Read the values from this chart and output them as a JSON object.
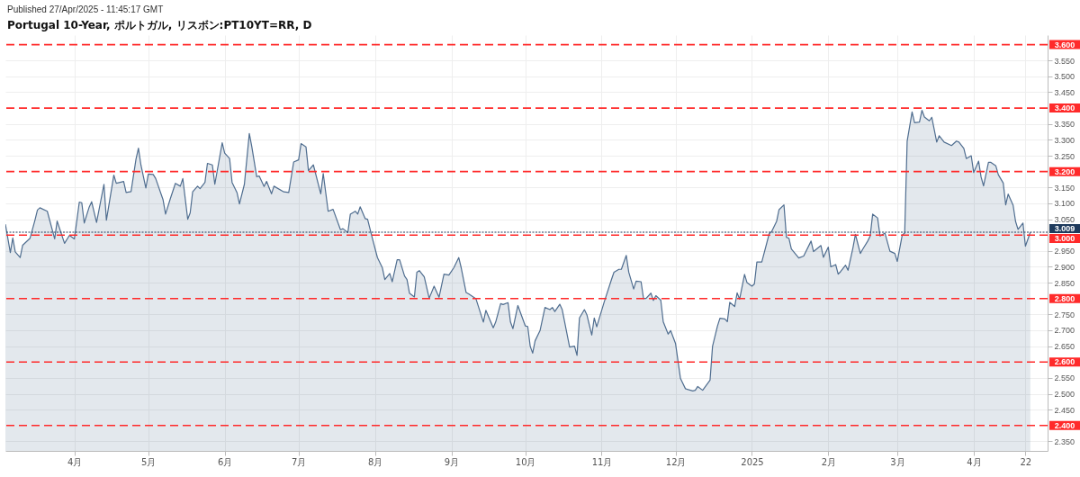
{
  "chart_data": {
    "type": "area",
    "title": "Portugal 10-Year, ポルトガル, リスボン:PT10YT=RR, D",
    "subtitle": "Published 27/Apr/2025 - 11:45:17 GMT",
    "color": "#4f6d8f",
    "grid": true,
    "x": [
      "2024-03-04",
      "2024-03-06",
      "2024-03-07",
      "2024-03-08",
      "2024-03-10",
      "2024-03-11",
      "2024-03-14",
      "2024-03-16",
      "2024-03-17",
      "2024-03-18",
      "2024-03-21",
      "2024-03-24",
      "2024-03-25",
      "2024-03-28",
      "2024-03-30",
      "2024-04-01",
      "2024-04-03",
      "2024-04-04",
      "2024-04-05",
      "2024-04-07",
      "2024-04-08",
      "2024-04-10",
      "2024-04-13",
      "2024-04-14",
      "2024-04-17",
      "2024-04-18",
      "2024-04-21",
      "2024-04-22",
      "2024-04-24",
      "2024-04-26",
      "2024-04-27",
      "2024-04-28",
      "2024-04-30",
      "2024-05-01",
      "2024-05-03",
      "2024-05-04",
      "2024-05-07",
      "2024-05-08",
      "2024-05-10",
      "2024-05-12",
      "2024-05-14",
      "2024-05-15",
      "2024-05-17",
      "2024-05-18",
      "2024-05-19",
      "2024-05-21",
      "2024-05-22",
      "2024-05-24",
      "2024-05-25",
      "2024-05-27",
      "2024-05-28",
      "2024-05-31",
      "2024-06-01",
      "2024-06-03",
      "2024-06-04",
      "2024-06-06",
      "2024-06-07",
      "2024-06-09",
      "2024-06-11",
      "2024-06-12",
      "2024-06-14",
      "2024-06-15",
      "2024-06-17",
      "2024-06-18",
      "2024-06-20",
      "2024-06-21",
      "2024-06-25",
      "2024-06-27",
      "2024-06-29",
      "2024-07-01",
      "2024-07-02",
      "2024-07-04",
      "2024-07-05",
      "2024-07-07",
      "2024-07-10",
      "2024-07-11",
      "2024-07-13",
      "2024-07-15",
      "2024-07-18",
      "2024-07-19",
      "2024-07-21",
      "2024-07-22",
      "2024-07-24",
      "2024-07-25",
      "2024-07-26",
      "2024-07-28",
      "2024-07-29",
      "2024-07-31",
      "2024-08-02",
      "2024-08-04",
      "2024-08-05",
      "2024-08-07",
      "2024-08-08",
      "2024-08-10",
      "2024-08-11",
      "2024-08-13",
      "2024-08-14",
      "2024-08-15",
      "2024-08-17",
      "2024-08-18",
      "2024-08-19",
      "2024-08-21",
      "2024-08-23",
      "2024-08-25",
      "2024-08-27",
      "2024-08-29",
      "2024-08-31",
      "2024-09-02",
      "2024-09-04",
      "2024-09-05",
      "2024-09-07",
      "2024-09-08",
      "2024-09-11",
      "2024-09-14",
      "2024-09-15",
      "2024-09-18",
      "2024-09-19",
      "2024-09-21",
      "2024-09-22",
      "2024-09-24",
      "2024-09-25",
      "2024-09-26",
      "2024-09-28",
      "2024-10-01",
      "2024-10-02",
      "2024-10-03",
      "2024-10-04",
      "2024-10-05",
      "2024-10-07",
      "2024-10-09",
      "2024-10-11",
      "2024-10-12",
      "2024-10-13",
      "2024-10-15",
      "2024-10-16",
      "2024-10-19",
      "2024-10-21",
      "2024-10-22",
      "2024-10-23",
      "2024-10-25",
      "2024-10-26",
      "2024-10-28",
      "2024-10-29",
      "2024-10-30",
      "2024-11-02",
      "2024-11-05",
      "2024-11-06",
      "2024-11-08",
      "2024-11-09",
      "2024-11-11",
      "2024-11-12",
      "2024-11-14",
      "2024-11-15",
      "2024-11-17",
      "2024-11-18",
      "2024-11-19",
      "2024-11-21",
      "2024-11-22",
      "2024-11-23",
      "2024-11-25",
      "2024-11-26",
      "2024-11-28",
      "2024-11-29",
      "2024-12-01",
      "2024-12-03",
      "2024-12-05",
      "2024-12-08",
      "2024-12-09",
      "2024-12-10",
      "2024-12-12",
      "2024-12-15",
      "2024-12-16",
      "2024-12-18",
      "2024-12-19",
      "2024-12-21",
      "2024-12-22",
      "2024-12-23",
      "2024-12-25",
      "2024-12-26",
      "2024-12-27",
      "2024-12-29",
      "2024-12-30",
      "2025-01-01",
      "2025-01-02",
      "2025-01-03",
      "2025-01-05",
      "2025-01-08",
      "2025-01-09",
      "2025-01-11",
      "2025-01-12",
      "2025-01-14",
      "2025-01-15",
      "2025-01-16",
      "2025-01-17",
      "2025-01-20",
      "2025-01-22",
      "2025-01-25",
      "2025-01-26",
      "2025-01-29",
      "2025-01-30",
      "2025-02-01",
      "2025-02-02",
      "2025-02-04",
      "2025-02-05",
      "2025-02-06",
      "2025-02-08",
      "2025-02-09",
      "2025-02-11",
      "2025-02-12",
      "2025-02-14",
      "2025-02-15",
      "2025-02-17",
      "2025-02-18",
      "2025-02-19",
      "2025-02-21",
      "2025-02-22",
      "2025-02-24",
      "2025-02-26",
      "2025-02-28",
      "2025-03-01",
      "2025-03-03",
      "2025-03-04",
      "2025-03-05",
      "2025-03-07",
      "2025-03-08",
      "2025-03-10",
      "2025-03-11",
      "2025-03-12",
      "2025-03-14",
      "2025-03-15",
      "2025-03-17",
      "2025-03-18",
      "2025-03-20",
      "2025-03-23",
      "2025-03-25",
      "2025-03-26",
      "2025-03-28",
      "2025-03-29",
      "2025-03-31",
      "2025-04-01",
      "2025-04-03",
      "2025-04-04",
      "2025-04-05",
      "2025-04-07",
      "2025-04-08",
      "2025-04-10",
      "2025-04-11",
      "2025-04-13",
      "2025-04-14",
      "2025-04-15",
      "2025-04-17",
      "2025-04-18",
      "2025-04-19",
      "2025-04-21",
      "2025-04-22",
      "2025-04-24"
    ],
    "values": [
      3.034,
      2.945,
      2.991,
      2.947,
      2.929,
      2.968,
      2.99,
      3.047,
      3.079,
      3.086,
      3.075,
      2.988,
      3.044,
      2.974,
      2.999,
      2.988,
      3.104,
      3.102,
      3.038,
      3.088,
      3.105,
      3.04,
      3.16,
      3.047,
      3.189,
      3.163,
      3.169,
      3.134,
      3.137,
      3.239,
      3.274,
      3.221,
      3.148,
      3.192,
      3.191,
      3.178,
      3.111,
      3.066,
      3.116,
      3.163,
      3.154,
      3.178,
      3.05,
      3.07,
      3.136,
      3.154,
      3.146,
      3.166,
      3.226,
      3.221,
      3.16,
      3.291,
      3.258,
      3.241,
      3.166,
      3.134,
      3.098,
      3.16,
      3.32,
      3.279,
      3.184,
      3.186,
      3.153,
      3.169,
      3.13,
      3.154,
      3.136,
      3.134,
      3.23,
      3.237,
      3.288,
      3.278,
      3.203,
      3.221,
      3.13,
      3.194,
      3.075,
      3.081,
      3.017,
      3.02,
      3.008,
      3.066,
      3.075,
      3.066,
      3.089,
      3.052,
      3.05,
      2.988,
      2.929,
      2.897,
      2.86,
      2.879,
      2.853,
      2.922,
      2.922,
      2.871,
      2.86,
      2.817,
      2.805,
      2.883,
      2.888,
      2.868,
      2.801,
      2.839,
      2.804,
      2.877,
      2.874,
      2.897,
      2.929,
      2.897,
      2.819,
      2.815,
      2.799,
      2.726,
      2.763,
      2.708,
      2.726,
      2.784,
      2.781,
      2.787,
      2.726,
      2.705,
      2.778,
      2.714,
      2.712,
      2.65,
      2.628,
      2.667,
      2.699,
      2.772,
      2.765,
      2.772,
      2.759,
      2.782,
      2.765,
      2.647,
      2.65,
      2.621,
      2.739,
      2.765,
      2.749,
      2.685,
      2.739,
      2.711,
      2.788,
      2.86,
      2.883,
      2.892,
      2.892,
      2.936,
      2.883,
      2.83,
      2.855,
      2.853,
      2.8,
      2.8,
      2.817,
      2.794,
      2.809,
      2.795,
      2.727,
      2.688,
      2.699,
      2.658,
      2.548,
      2.516,
      2.509,
      2.511,
      2.523,
      2.511,
      2.543,
      2.649,
      2.713,
      2.738,
      2.736,
      2.727,
      2.788,
      2.775,
      2.818,
      2.798,
      2.876,
      2.85,
      2.839,
      2.846,
      2.915,
      2.915,
      3.004,
      3.011,
      3.043,
      3.08,
      3.095,
      2.993,
      2.99,
      2.956,
      2.928,
      2.934,
      2.981,
      2.948,
      2.967,
      2.93,
      2.962,
      2.9,
      2.907,
      2.877,
      2.885,
      2.905,
      2.889,
      2.96,
      3.002,
      2.942,
      2.956,
      2.981,
      2.997,
      3.066,
      3.054,
      2.997,
      3.006,
      2.949,
      2.942,
      2.917,
      3.0,
      3.006,
      3.296,
      3.388,
      3.354,
      3.356,
      3.393,
      3.372,
      3.36,
      3.371,
      3.293,
      3.313,
      3.293,
      3.282,
      3.296,
      3.293,
      3.273,
      3.241,
      3.25,
      3.197,
      3.233,
      3.183,
      3.155,
      3.229,
      3.229,
      3.218,
      3.19,
      3.164,
      3.095,
      3.129,
      3.094,
      3.043,
      3.018,
      3.038,
      2.965,
      3.009
    ],
    "xlim": [
      "2024-03-04",
      "2025-05-01"
    ],
    "ylim": [
      2.32,
      3.63
    ],
    "xticks": [
      {
        "value": "2024-04-01",
        "label": "4月"
      },
      {
        "value": "2024-05-01",
        "label": "5月"
      },
      {
        "value": "2024-06-01",
        "label": "6月"
      },
      {
        "value": "2024-07-01",
        "label": "7月"
      },
      {
        "value": "2024-08-01",
        "label": "8月"
      },
      {
        "value": "2024-09-01",
        "label": "9月"
      },
      {
        "value": "2024-10-01",
        "label": "10月"
      },
      {
        "value": "2024-11-01",
        "label": "11月"
      },
      {
        "value": "2024-12-01",
        "label": "12月"
      },
      {
        "value": "2025-01-01",
        "label": "2025"
      },
      {
        "value": "2025-02-01",
        "label": "2月"
      },
      {
        "value": "2025-03-01",
        "label": "3月"
      },
      {
        "value": "2025-04-01",
        "label": "4月"
      },
      {
        "value": "2025-04-22",
        "label": "22"
      }
    ],
    "yticks": [
      {
        "value": 2.35,
        "label": "2.350"
      },
      {
        "value": 2.45,
        "label": "2.450"
      },
      {
        "value": 2.5,
        "label": "2.500"
      },
      {
        "value": 2.55,
        "label": "2.550"
      },
      {
        "value": 2.65,
        "label": "2.650"
      },
      {
        "value": 2.7,
        "label": "2.700"
      },
      {
        "value": 2.75,
        "label": "2.750"
      },
      {
        "value": 2.85,
        "label": "2.850"
      },
      {
        "value": 2.9,
        "label": "2.900"
      },
      {
        "value": 2.95,
        "label": "2.950"
      },
      {
        "value": 3.05,
        "label": "3.050"
      },
      {
        "value": 3.1,
        "label": "3.100"
      },
      {
        "value": 3.15,
        "label": "3.150"
      },
      {
        "value": 3.25,
        "label": "3.250"
      },
      {
        "value": 3.3,
        "label": "3.300"
      },
      {
        "value": 3.35,
        "label": "3.350"
      },
      {
        "value": 3.45,
        "label": "3.450"
      },
      {
        "value": 3.5,
        "label": "3.500"
      },
      {
        "value": 3.55,
        "label": "3.550"
      }
    ],
    "ref_lines": [
      {
        "axis": "y",
        "value": 3.6,
        "label": "3.600",
        "color": "#ff2a2a",
        "line_style": "dashed"
      },
      {
        "axis": "y",
        "value": 3.4,
        "label": "3.400",
        "color": "#ff2a2a",
        "line_style": "dashed"
      },
      {
        "axis": "y",
        "value": 3.2,
        "label": "3.200",
        "color": "#ff2a2a",
        "line_style": "dashed"
      },
      {
        "axis": "y",
        "value": 3.0,
        "label": "3.000",
        "color": "#ff2a2a",
        "line_style": "dashed"
      },
      {
        "axis": "y",
        "value": 2.8,
        "label": "2.800",
        "color": "#ff2a2a",
        "line_style": "dashed"
      },
      {
        "axis": "y",
        "value": 2.6,
        "label": "2.600",
        "color": "#ff2a2a",
        "line_style": "dashed"
      },
      {
        "axis": "y",
        "value": 2.4,
        "label": "2.400",
        "color": "#ff2a2a",
        "line_style": "dashed"
      },
      {
        "axis": "y",
        "value": 3.009,
        "label": "3.009",
        "color": "#1e3a5c",
        "line_style": "dotted"
      }
    ]
  }
}
